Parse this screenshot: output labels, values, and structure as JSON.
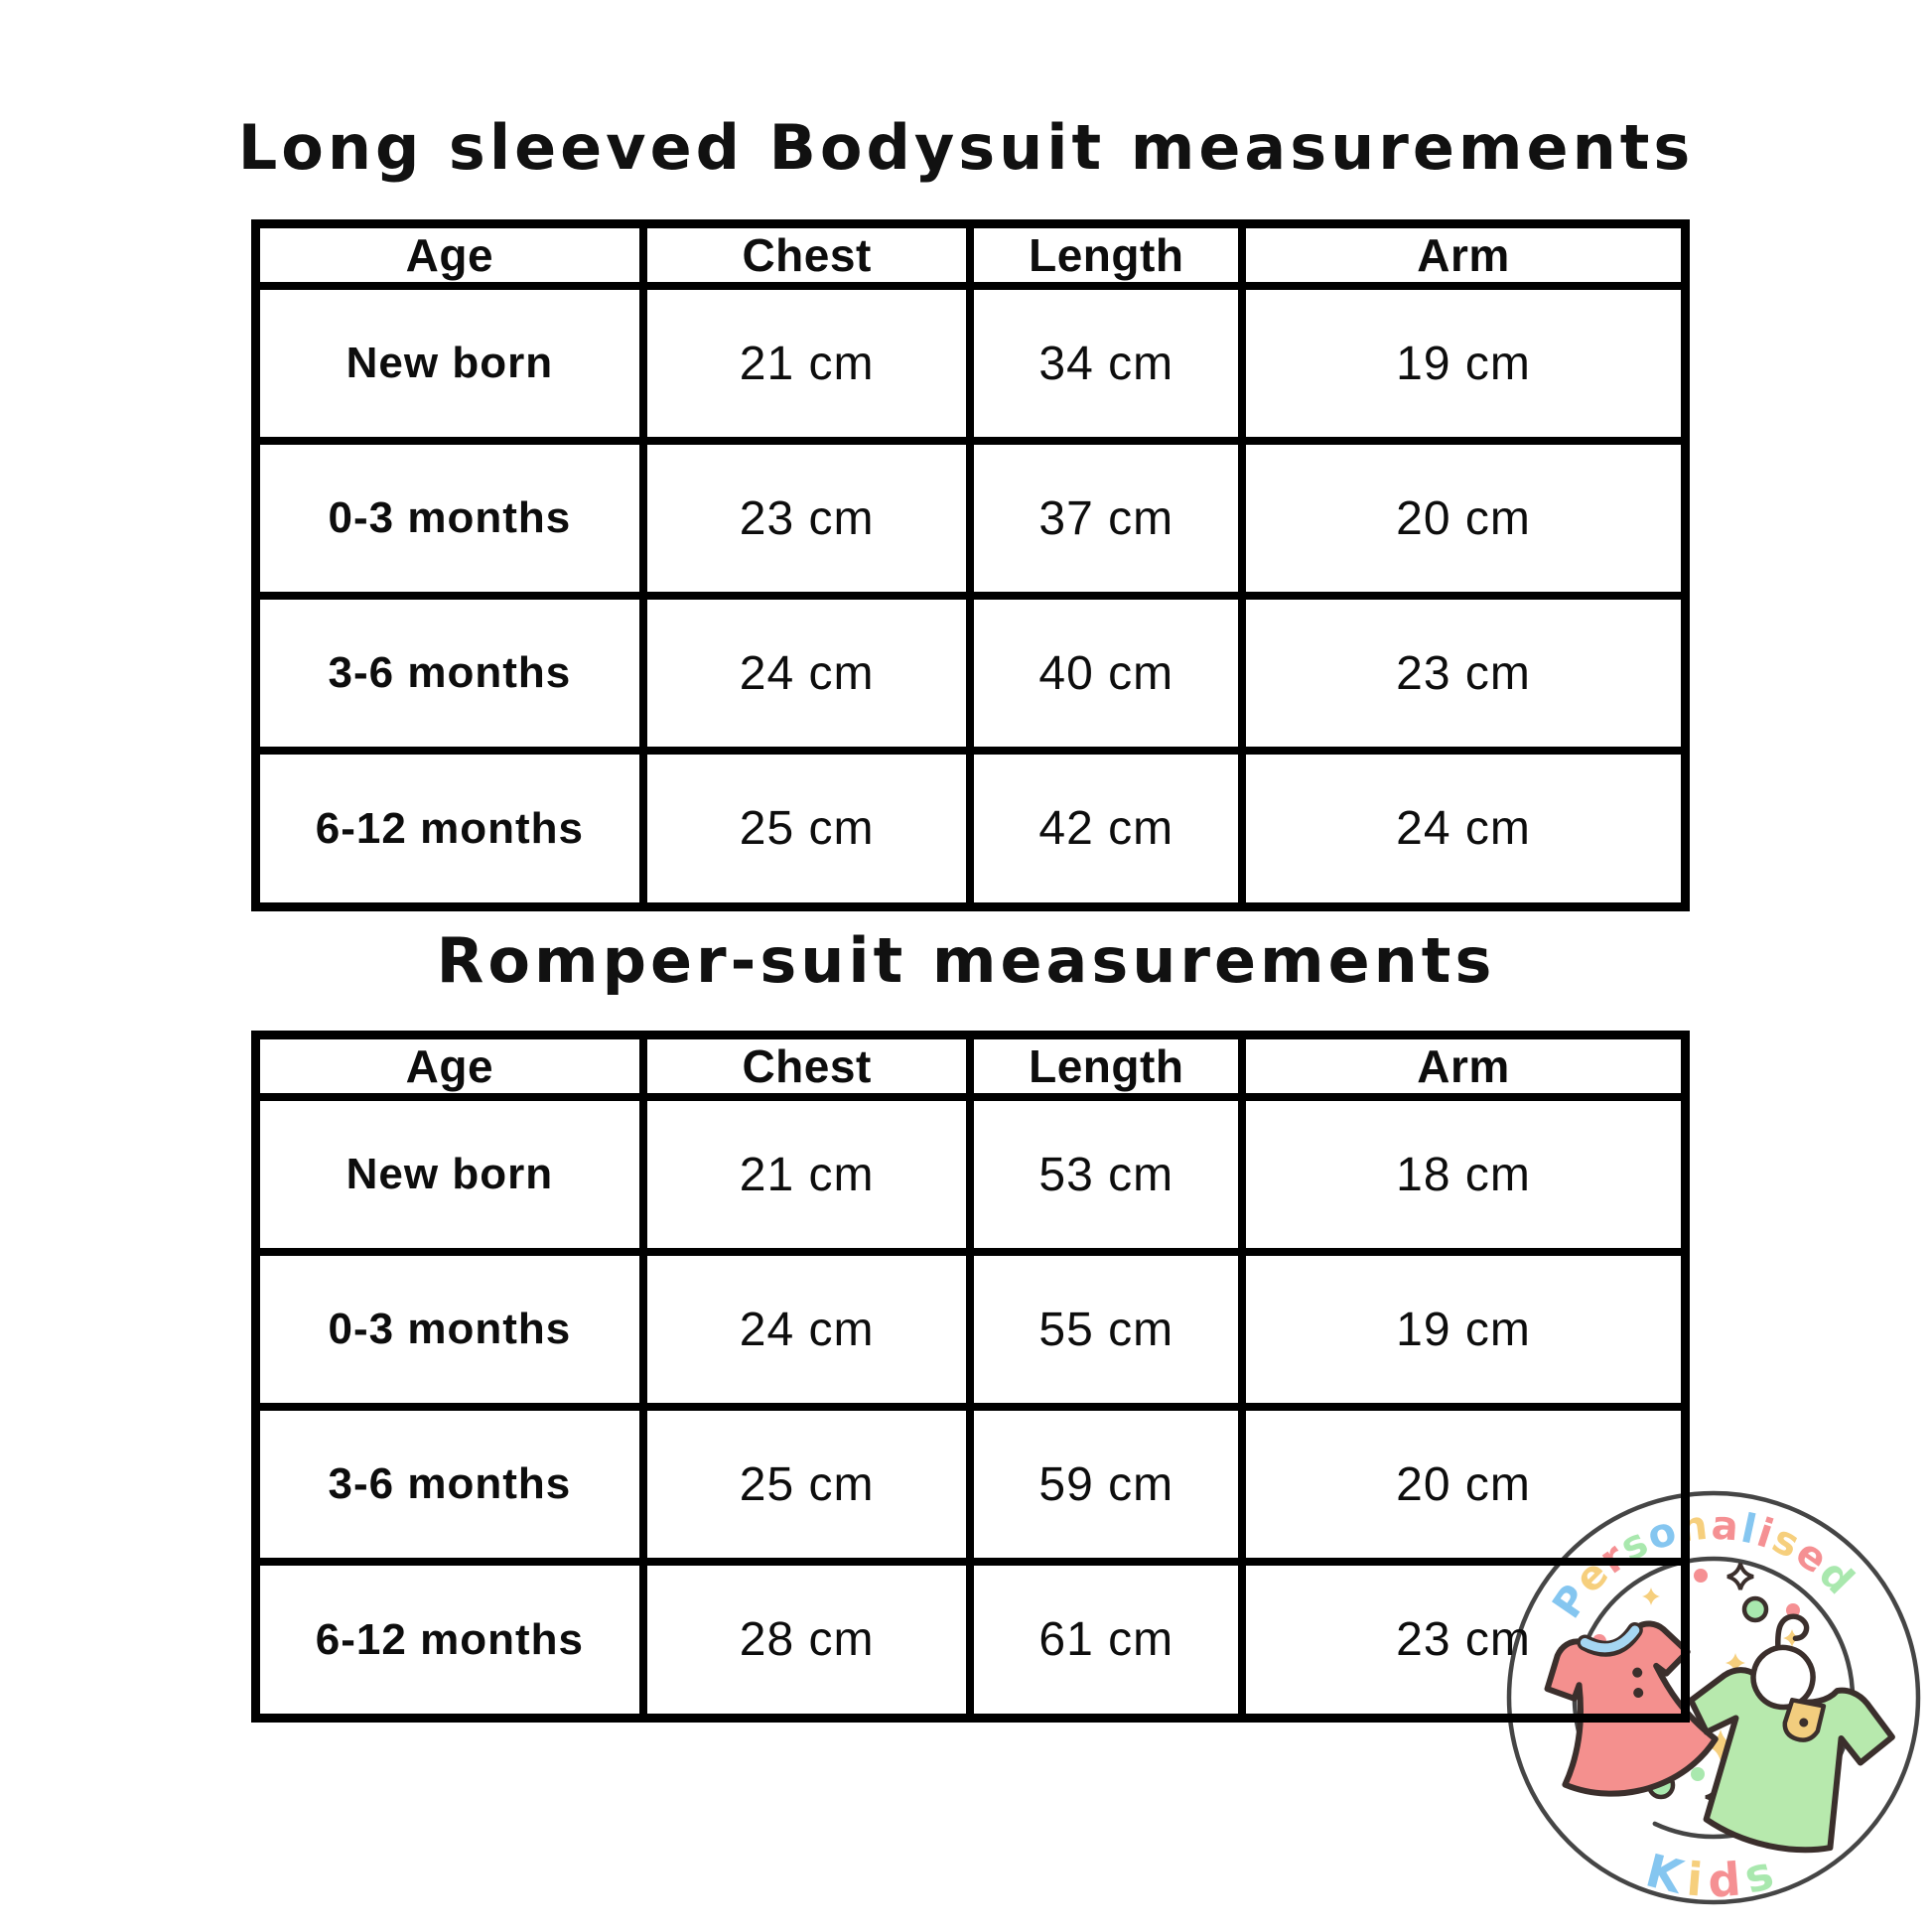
{
  "page": {
    "background": "#ffffff",
    "border_color": "#000000",
    "text_color": "#111111"
  },
  "tables": [
    {
      "title": "Long sleeved Bodysuit measurements",
      "columns": [
        "Age",
        "Chest",
        "Length",
        "Arm"
      ],
      "rows": [
        [
          "New born",
          "21 cm",
          "34 cm",
          "19 cm"
        ],
        [
          "0-3 months",
          "23 cm",
          "37 cm",
          "20 cm"
        ],
        [
          "3-6 months",
          "24 cm",
          "40 cm",
          "23 cm"
        ],
        [
          "6-12 months",
          "25 cm",
          "42 cm",
          "24 cm"
        ]
      ]
    },
    {
      "title": "Romper-suit measurements",
      "columns": [
        "Age",
        "Chest",
        "Length",
        "Arm"
      ],
      "rows": [
        [
          "New born",
          "21 cm",
          "53 cm",
          "18 cm"
        ],
        [
          "0-3 months",
          "24 cm",
          "55 cm",
          "19 cm"
        ],
        [
          "3-6 months",
          "25 cm",
          "59 cm",
          "20 cm"
        ],
        [
          "6-12 months",
          "28 cm",
          "61 cm",
          "23 cm"
        ]
      ]
    }
  ],
  "logo": {
    "top_text": "Personalised",
    "bottom_text": "Kids",
    "top_letter_colors": [
      "#85c6f0",
      "#f6cf7d",
      "#f59093",
      "#a9e8ae",
      "#85c6f0",
      "#f6cf7d",
      "#f59093",
      "#85c6f0",
      "#f59093",
      "#f6cf7d",
      "#f59093",
      "#a9e8ae"
    ],
    "bottom_letter_colors": [
      "#85c6f0",
      "#f6cf7d",
      "#f59093",
      "#a9e8ae"
    ],
    "circle_color": "#454545",
    "outline_color": "#3b2f2c",
    "dress_color": "#f4908e",
    "dress_collar_color": "#a5d6f2",
    "shirt_color": "#b7e9ad",
    "pocket_color": "#f2cd7e",
    "sparkle_yellow": "#f6cf7d",
    "dot_green": "#a9e8ae",
    "dot_coral": "#f59093"
  }
}
